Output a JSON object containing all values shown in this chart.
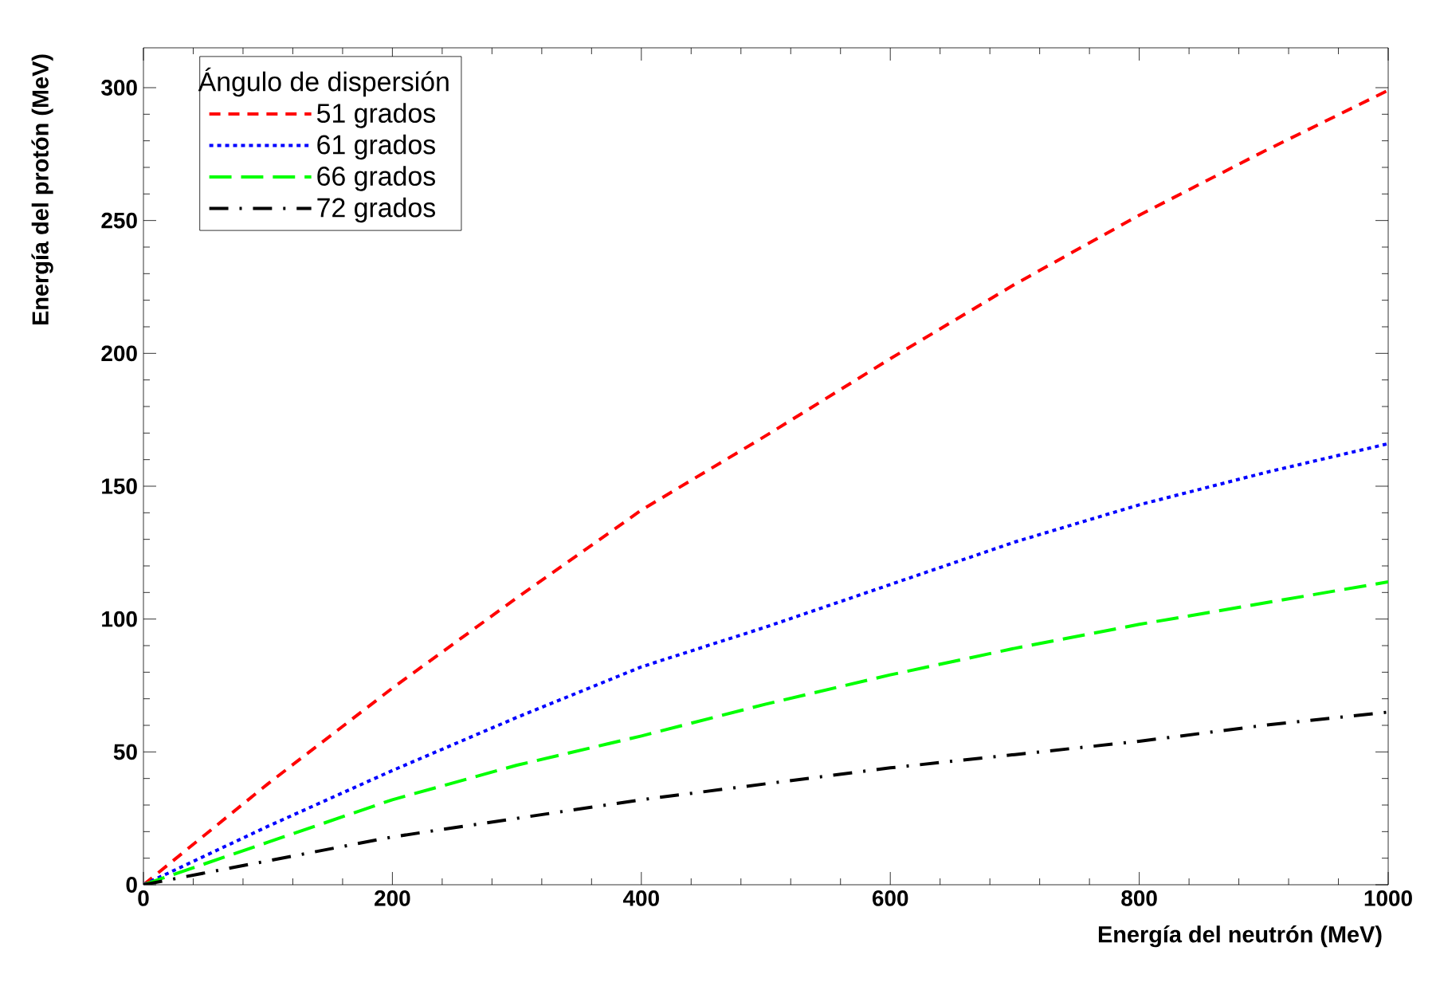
{
  "chart_data": {
    "type": "line",
    "xlabel": "Energía del neutrón (MeV)",
    "ylabel": "Energía del protón (MeV)",
    "legend_title": "Ángulo de dispersión",
    "legend": "top left",
    "grid": false,
    "x": [
      0,
      100,
      200,
      300,
      400,
      500,
      600,
      700,
      800,
      900,
      1000
    ],
    "xlim": [
      0,
      1000
    ],
    "ylim": [
      0,
      315
    ],
    "xticks": [
      0,
      200,
      400,
      600,
      800,
      1000
    ],
    "yticks": [
      0,
      50,
      100,
      150,
      200,
      250,
      300
    ],
    "series": [
      {
        "name": "51 grados",
        "color": "#ff0000",
        "line_style": "dashed",
        "values": [
          0,
          38,
          74,
          108,
          141,
          169,
          198,
          226,
          252,
          276,
          299
        ]
      },
      {
        "name": "61 grados",
        "color": "#0000ff",
        "line_style": "dotted",
        "values": [
          0,
          22,
          43,
          63,
          82,
          97,
          113,
          129,
          143,
          155,
          166
        ]
      },
      {
        "name": "66 grados",
        "color": "#00ff00",
        "line_style": "longdash",
        "values": [
          0,
          16,
          32,
          45,
          56,
          68,
          79,
          89,
          98,
          106,
          114
        ]
      },
      {
        "name": "72 grados",
        "color": "#000000",
        "line_style": "dashdot",
        "values": [
          0,
          9,
          18,
          25,
          32,
          38,
          44,
          49,
          54,
          60,
          65
        ]
      }
    ]
  }
}
